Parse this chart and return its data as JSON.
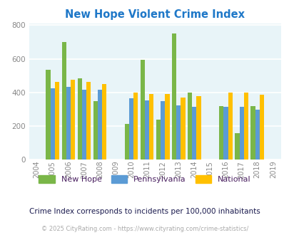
{
  "title": "New Hope Violent Crime Index",
  "years": [
    2004,
    2005,
    2006,
    2007,
    2008,
    2009,
    2010,
    2011,
    2012,
    2013,
    2014,
    2015,
    2016,
    2017,
    2018,
    2019
  ],
  "data_years": [
    2005,
    2006,
    2007,
    2008,
    2010,
    2011,
    2012,
    2013,
    2014,
    2016,
    2017,
    2018
  ],
  "new_hope": [
    535,
    700,
    485,
    350,
    215,
    595,
    238,
    752,
    400,
    320,
    160,
    320
  ],
  "pennsylvania": [
    425,
    435,
    415,
    415,
    365,
    355,
    350,
    325,
    315,
    315,
    315,
    300
  ],
  "national": [
    465,
    475,
    465,
    450,
    400,
    390,
    390,
    368,
    380,
    400,
    400,
    385
  ],
  "color_new_hope": "#7ab648",
  "color_pennsylvania": "#5b9bd5",
  "color_national": "#ffc000",
  "bg_color": "#e8f4f8",
  "title_color": "#1f78c8",
  "ylabel_max": 800,
  "yticks": [
    0,
    200,
    400,
    600,
    800
  ],
  "subtitle": "Crime Index corresponds to incidents per 100,000 inhabitants",
  "footer": "© 2025 CityRating.com - https://www.cityrating.com/crime-statistics/",
  "subtitle_color": "#1a1a4e",
  "footer_color": "#aaaaaa",
  "legend_labels": [
    "New Hope",
    "Pennsylvania",
    "National"
  ],
  "legend_label_color": "#4a2060",
  "bar_width": 0.28
}
